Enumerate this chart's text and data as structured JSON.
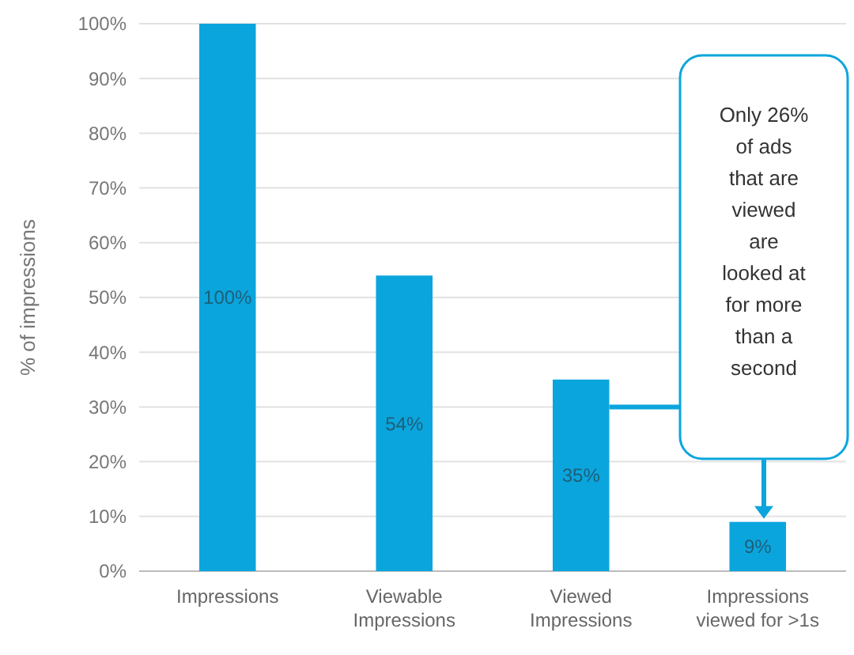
{
  "chart_data": {
    "type": "bar",
    "ylabel": "% of impressions",
    "categories": [
      "Impressions",
      "Viewable Impressions",
      "Viewed Impressions",
      "Impressions viewed for >1s"
    ],
    "values": [
      100,
      54,
      35,
      9
    ],
    "value_labels": [
      "100%",
      "54%",
      "35%",
      "9%"
    ],
    "color": "#0ba5dd",
    "ylim": [
      0,
      100
    ],
    "yticks": [
      {
        "value": 0,
        "label": "0%"
      },
      {
        "value": 10,
        "label": "10%"
      },
      {
        "value": 20,
        "label": "20%"
      },
      {
        "value": 30,
        "label": "30%"
      },
      {
        "value": 40,
        "label": "40%"
      },
      {
        "value": 50,
        "label": "50%"
      },
      {
        "value": 60,
        "label": "60%"
      },
      {
        "value": 70,
        "label": "70%"
      },
      {
        "value": 80,
        "label": "80%"
      },
      {
        "value": 90,
        "label": "90%"
      },
      {
        "value": 100,
        "label": "100%"
      }
    ],
    "grid": "y",
    "annotations": [
      "Only 26% of ads that are viewed are looked at for more than a second"
    ]
  }
}
